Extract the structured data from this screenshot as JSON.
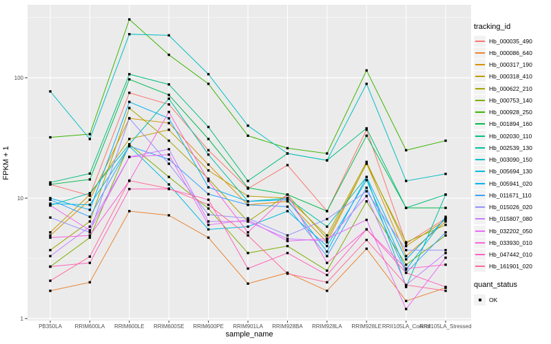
{
  "figure": {
    "y_axis_title": "FPKM + 1",
    "x_axis_title": "sample_name",
    "legend": {
      "tracking_title": "tracking_id",
      "quant_title": "quant_status",
      "quant_ok_label": "OK"
    },
    "colors": {
      "panel_bg": "#EBEBEB",
      "grid": "#FFFFFF",
      "tick_label": "#4D4D4D",
      "tick_mark": "#333333",
      "point": "#000000",
      "legend_key_bg": "#F2F2F2"
    }
  },
  "chart_data": {
    "type": "line",
    "title": "",
    "xlabel": "sample_name",
    "ylabel": "FPKM + 1",
    "y_scale": "log10",
    "ylim": [
      1,
      410
    ],
    "y_ticks": [
      1,
      10,
      100
    ],
    "y_minor_ticks": [
      3.1623,
      31.623,
      316.23
    ],
    "grid": true,
    "legend_position": "right",
    "legend_title": "tracking_id",
    "point_legend_title": "quant_status",
    "point_legend_value": "OK",
    "point_shape": "black-square",
    "categories": [
      "PB350LA",
      "RRIM600LA",
      "RRIM600LE",
      "RRIM600SE",
      "RRIM600PE",
      "RRIM901LA",
      "RRIM928BA",
      "RRIM928LA",
      "RRIM928LE",
      "RRII105LA_Control",
      "RRII105LA_Stressed"
    ],
    "series": [
      {
        "name": "Hb_000035_490",
        "color": "#F8766D",
        "values": [
          13.0,
          10.5,
          75,
          60,
          25,
          12.0,
          18.8,
          7.8,
          37,
          4.2,
          6.8
        ]
      },
      {
        "name": "Hb_000086_640",
        "color": "#EA8331",
        "values": [
          1.7,
          2.0,
          7.8,
          7.2,
          4.7,
          1.95,
          2.4,
          1.7,
          3.8,
          1.4,
          1.8
        ]
      },
      {
        "name": "Hb_000317_190",
        "color": "#D89000",
        "values": [
          4.9,
          9.7,
          46,
          42,
          19,
          8.8,
          9.4,
          4.3,
          19.5,
          3.3,
          6.4
        ]
      },
      {
        "name": "Hb_000318_410",
        "color": "#C09B00",
        "values": [
          5.2,
          10.7,
          31,
          37,
          17,
          10.4,
          10.0,
          4.9,
          20,
          4.0,
          6.6
        ]
      },
      {
        "name": "Hb_000622_210",
        "color": "#A3A500",
        "values": [
          3.7,
          6.4,
          56,
          30,
          14.5,
          6.4,
          10.7,
          4.6,
          19.3,
          4.3,
          6.0
        ]
      },
      {
        "name": "Hb_000753_140",
        "color": "#7CAE00",
        "values": [
          2.7,
          4.7,
          28,
          15,
          8.2,
          3.5,
          4.0,
          2.5,
          9.4,
          2.8,
          4.9
        ]
      },
      {
        "name": "Hb_000928_250",
        "color": "#39B600",
        "values": [
          32,
          34,
          305,
          155,
          89,
          33,
          26,
          23.5,
          115,
          25,
          30
        ]
      },
      {
        "name": "Hb_001894_160",
        "color": "#00BB4E",
        "values": [
          13,
          14.3,
          97,
          72,
          31,
          12.2,
          10.7,
          7.8,
          33,
          8.3,
          8.3
        ]
      },
      {
        "name": "Hb_002030_110",
        "color": "#00BF7D",
        "values": [
          13.5,
          16,
          107,
          88,
          39,
          13.9,
          23.5,
          20.6,
          38,
          8.3,
          10.7
        ]
      },
      {
        "name": "Hb_002539_130",
        "color": "#00C1A3",
        "values": [
          8.7,
          11,
          28,
          67,
          23,
          9.4,
          10.0,
          5.8,
          15,
          1.83,
          10.7
        ]
      },
      {
        "name": "Hb_003090_150",
        "color": "#00BFC4",
        "values": [
          77,
          31,
          230,
          225,
          107,
          40,
          23.5,
          20.6,
          89,
          13.9,
          15.9
        ]
      },
      {
        "name": "Hb_005694_130",
        "color": "#00BAE0",
        "values": [
          9.0,
          8.8,
          27,
          13,
          5.5,
          5.8,
          7.8,
          4.0,
          14.1,
          2.55,
          7.0
        ]
      },
      {
        "name": "Hb_005941_020",
        "color": "#00B0F6",
        "values": [
          10,
          8.0,
          63,
          46,
          12.3,
          9.4,
          9.7,
          3.6,
          15,
          3.1,
          6.8
        ]
      },
      {
        "name": "Hb_011671_110",
        "color": "#35A2FF",
        "values": [
          9.7,
          7.0,
          27,
          21,
          10.8,
          8.8,
          8.5,
          3.3,
          12.2,
          2.4,
          5.2
        ]
      },
      {
        "name": "Hb_015026_020",
        "color": "#9590FF",
        "values": [
          6.9,
          5.2,
          46,
          19.3,
          7.3,
          6.8,
          4.9,
          6.7,
          11.4,
          3.7,
          3.7
        ]
      },
      {
        "name": "Hb_015807_080",
        "color": "#C77CFF",
        "values": [
          3.3,
          5.8,
          22,
          25.5,
          6.4,
          6.4,
          4.6,
          4.4,
          10.4,
          1.9,
          3.5
        ]
      },
      {
        "name": "Hb_032202_050",
        "color": "#E76BF3",
        "values": [
          8.7,
          5.4,
          22,
          23,
          6.0,
          6.6,
          4.4,
          4.6,
          6.6,
          1.2,
          3.2
        ]
      },
      {
        "name": "Hb_033930_010",
        "color": "#FA62DB",
        "values": [
          4.7,
          4.9,
          13.9,
          52,
          13.9,
          5.2,
          10.7,
          2.9,
          5.5,
          2.6,
          2.8
        ]
      },
      {
        "name": "Hb_047442_010",
        "color": "#FF62BC",
        "values": [
          2.7,
          2.9,
          11.9,
          11.9,
          9.7,
          2.6,
          3.5,
          2.3,
          5.5,
          2.4,
          1.83
        ]
      },
      {
        "name": "Hb_161901_020",
        "color": "#FF6A98",
        "values": [
          2.06,
          3.27,
          14,
          12,
          8.8,
          4.9,
          2.36,
          2.0,
          4.5,
          1.9,
          1.7
        ]
      }
    ]
  }
}
